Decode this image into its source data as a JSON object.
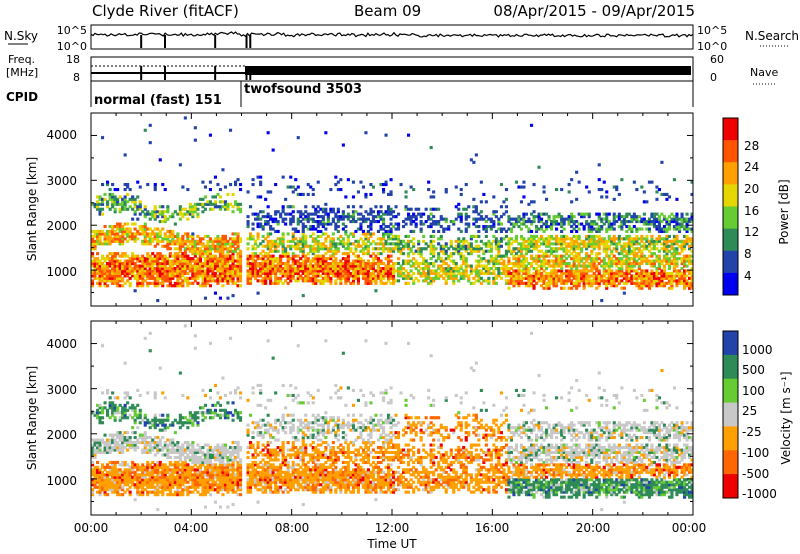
{
  "header": {
    "title": "Clyde River (fitACF)",
    "beam": "Beam 09",
    "dates": "08/Apr/2015 - 09/Apr/2015"
  },
  "summary": {
    "nsky_label": "N.Sky",
    "nsky_ticks": [
      "10^5",
      "10^0"
    ],
    "nsearch_label": "N.Search",
    "nsearch_ticks": [
      "10^5",
      "10^0"
    ],
    "freq_label_1": "Freq.",
    "freq_label_2": "[MHz]",
    "freq_ticks": [
      "18",
      "8"
    ],
    "nave_label": "Nave",
    "nave_ticks": [
      "60",
      "0"
    ],
    "cpid_label": "CPID",
    "cpid_segments": [
      {
        "label": "normal (fast) 151",
        "start_hour": 0,
        "end_hour": 6
      },
      {
        "label": "twofsound 3503",
        "start_hour": 6,
        "end_hour": 24
      }
    ]
  },
  "colors": {
    "power": [
      "#0000ee",
      "#2244aa",
      "#2e8b57",
      "#66cc33",
      "#e6d600",
      "#ffa000",
      "#ff5500",
      "#ee0000"
    ],
    "velocity": [
      "#2244aa",
      "#2e8b57",
      "#66cc33",
      "#c8c8c8",
      "#ffa000",
      "#ff6600",
      "#ee0000"
    ]
  },
  "chart_data": [
    {
      "type": "heatmap",
      "name": "power",
      "xlabel": "",
      "ylabel": "Slant Range [km]",
      "xlim": [
        0,
        24
      ],
      "ylim": [
        200,
        4500
      ],
      "yticks": [
        1000,
        2000,
        3000,
        4000
      ],
      "colorbar": {
        "label": "Power [dB]",
        "ticks": [
          "28",
          "24",
          "20",
          "16",
          "12",
          "8",
          "4"
        ],
        "range": [
          0,
          32
        ]
      }
    },
    {
      "type": "heatmap",
      "name": "velocity",
      "xlabel": "Time UT",
      "ylabel": "Slant Range [km]",
      "xlim": [
        0,
        24
      ],
      "ylim": [
        200,
        4500
      ],
      "yticks": [
        1000,
        2000,
        3000,
        4000
      ],
      "xtick_labels": [
        "00:00",
        "04:00",
        "08:00",
        "12:00",
        "16:00",
        "20:00",
        "00:00"
      ],
      "colorbar": {
        "label": "Velocity [m s⁻¹]",
        "ticks": [
          "1000",
          "500",
          "100",
          "25",
          "-25",
          "-100",
          "-500",
          "-1000"
        ]
      }
    }
  ]
}
